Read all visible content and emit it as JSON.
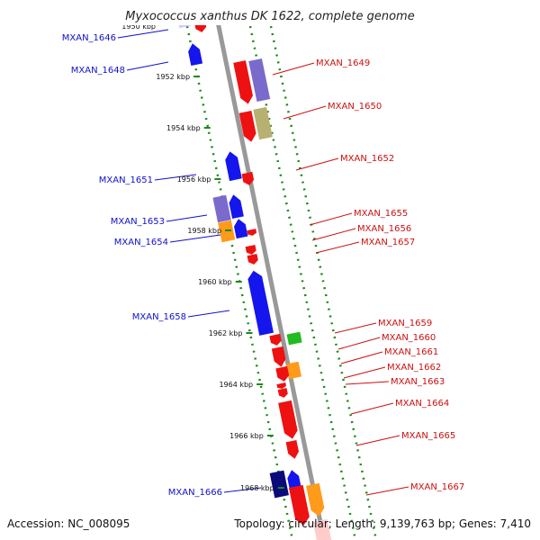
{
  "title": "Myxococcus xanthus DK 1622, complete genome",
  "accession": "Accession: NC_008095",
  "summary": "Topology: circular; Length: 9,139,763 bp; Genes: 7,410",
  "colors": {
    "backbone": "#999999",
    "ticks": "#1a8a1a",
    "left_label": "#1010cc",
    "right_label": "#cc1010",
    "red": "#ee1111",
    "blue": "#1515ee",
    "purple": "#7a6acc",
    "orange": "#ff9a1a",
    "olive": "#b8b070",
    "green": "#22bb22",
    "navy": "#0a0a7a",
    "lavender": "#ccccff",
    "pink": "#ffcccc"
  },
  "scale_ticks": [
    "1952 kbp",
    "1954 kbp",
    "1956 kbp",
    "1958 kbp",
    "1960 kbp",
    "1962 kbp",
    "1964 kbp",
    "1966 kbp",
    "1968 kbp"
  ],
  "top_partial_tick": "1950 kbp",
  "left_genes": [
    "MXAN_1646",
    "MXAN_1648",
    "MXAN_1651",
    "MXAN_1653",
    "MXAN_1654",
    "MXAN_1658",
    "MXAN_1666"
  ],
  "right_genes": [
    "MXAN_1649",
    "MXAN_1650",
    "MXAN_1652",
    "MXAN_1655",
    "MXAN_1656",
    "MXAN_1657",
    "MXAN_1659",
    "MXAN_1660",
    "MXAN_1661",
    "MXAN_1662",
    "MXAN_1663",
    "MXAN_1664",
    "MXAN_1665",
    "MXAN_1667"
  ]
}
